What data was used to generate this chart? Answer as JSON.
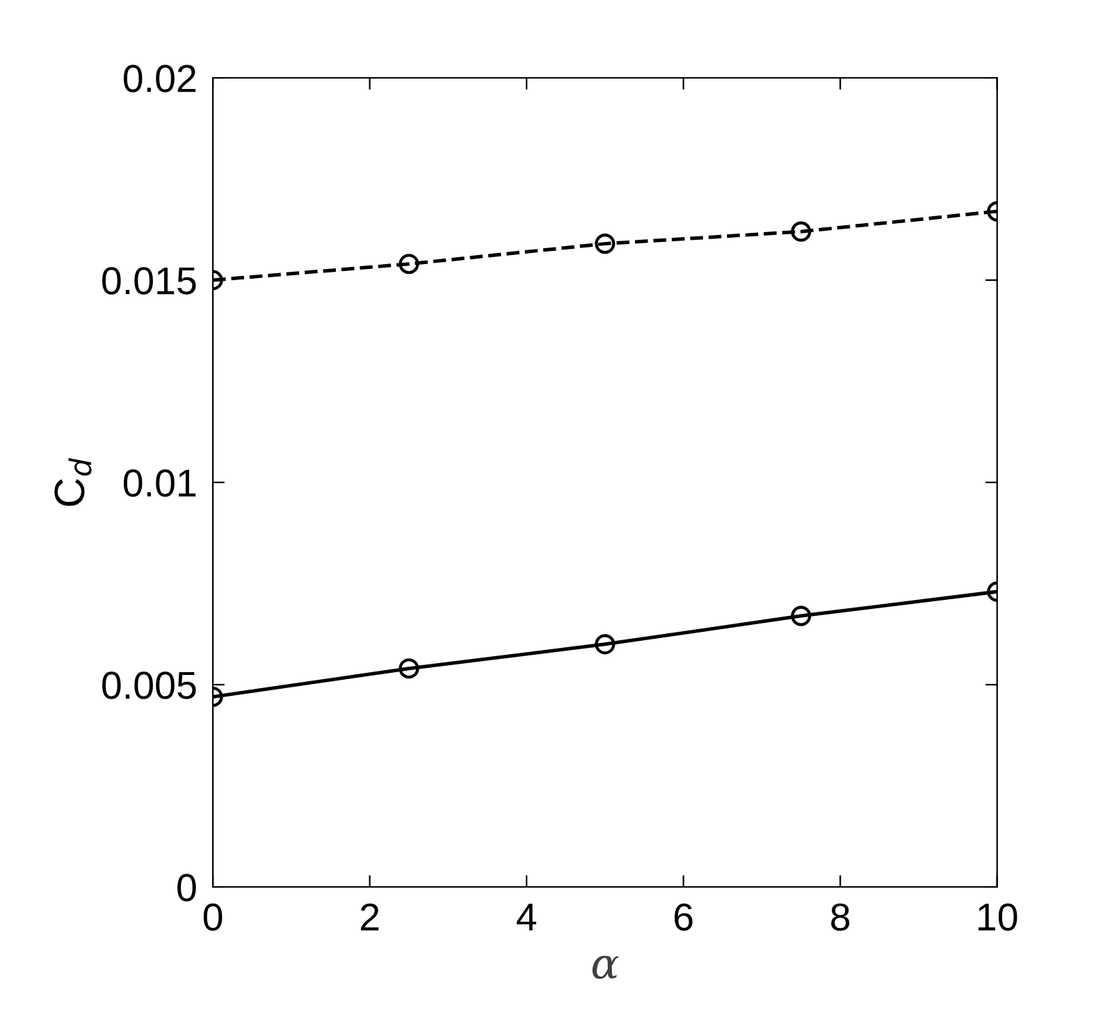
{
  "chart_data": {
    "type": "line",
    "xlabel": "α",
    "ylabel": "C$_{d}$",
    "x": [
      0,
      2.5,
      5,
      7.5,
      10
    ],
    "series": [
      {
        "color": "#000000",
        "line_style": "dashed",
        "values": [
          0.015,
          0.0154,
          0.0159,
          0.0162,
          0.0167
        ]
      },
      {
        "color": "#000000",
        "line_style": "solid",
        "values": [
          0.0047,
          0.0054,
          0.006,
          0.0067,
          0.0073
        ]
      }
    ],
    "marker": "circle",
    "xlim": [
      0,
      10
    ],
    "xticks": [
      0,
      2,
      4,
      6,
      8,
      10
    ],
    "ylim": [
      0,
      0.02
    ],
    "yticks": [
      0,
      0.005,
      0.01,
      0.015,
      0.02
    ],
    "grid": false,
    "legend": false
  }
}
